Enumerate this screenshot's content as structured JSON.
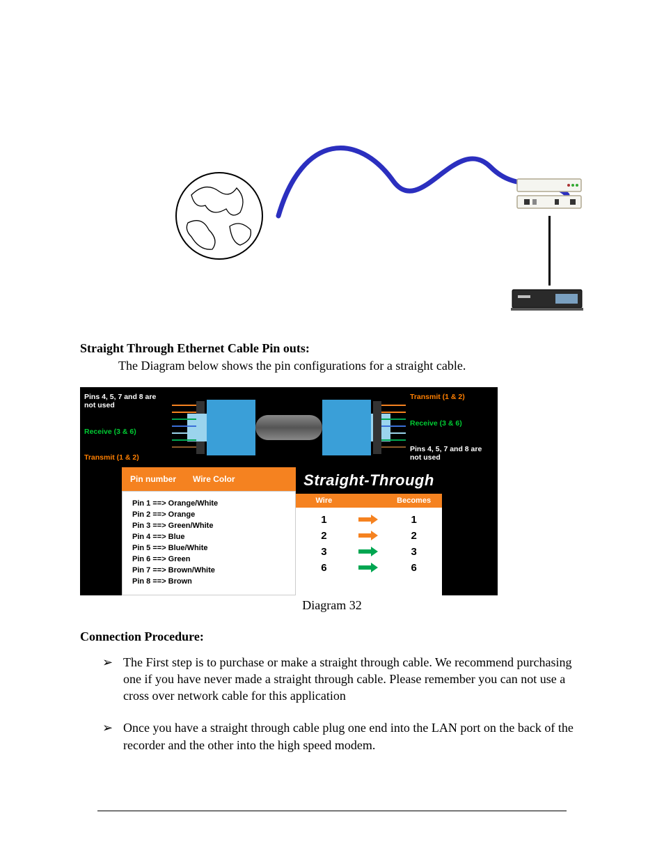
{
  "headings": {
    "pinouts": "Straight Through Ethernet Cable Pin outs:",
    "pinouts_text": "The Diagram below shows the pin configurations for a straight cable.",
    "procedure": "Connection Procedure:"
  },
  "caption": "Diagram 32",
  "cable": {
    "left": {
      "unused": "Pins 4, 5, 7 and 8 are not used",
      "receive": "Receive (3 & 6)",
      "transmit": "Transmit (1 & 2)"
    },
    "right": {
      "transmit": "Transmit (1 & 2)",
      "receive": "Receive (3 & 6)",
      "unused": "Pins 4, 5, 7 and 8 are not used"
    },
    "pin_header": {
      "col1": "Pin number",
      "col2": "Wire Color"
    },
    "pins": [
      "Pin 1 ==> Orange/White",
      "Pin 2 ==> Orange",
      "Pin 3 ==> Green/White",
      "Pin 4 ==> Blue",
      "Pin 5 ==> Blue/White",
      "Pin 6 ==> Green",
      "Pin 7 ==> Brown/White",
      "Pin 8 ==> Brown"
    ],
    "st_title": "Straight-Through",
    "st_sub": {
      "c1": "Wire",
      "c2": "Becomes"
    },
    "st_rows": [
      {
        "wire": "1",
        "becomes": "1",
        "color": "orange"
      },
      {
        "wire": "2",
        "becomes": "2",
        "color": "orange"
      },
      {
        "wire": "3",
        "becomes": "3",
        "color": "green"
      },
      {
        "wire": "6",
        "becomes": "6",
        "color": "green"
      }
    ]
  },
  "procedure": [
    "The First step is to purchase or make a straight through cable. We recommend purchasing one if you have never made a straight through cable. Please remember you can not use a cross over network cable for this application",
    "Once you have a straight through cable plug one end into the LAN port on the back of the recorder and the other into the high speed modem."
  ],
  "colors": {
    "orange": "#f58220",
    "green": "#00a651",
    "cable_blue": "#2b2fbf",
    "connector_blue": "#3a9fd8"
  }
}
